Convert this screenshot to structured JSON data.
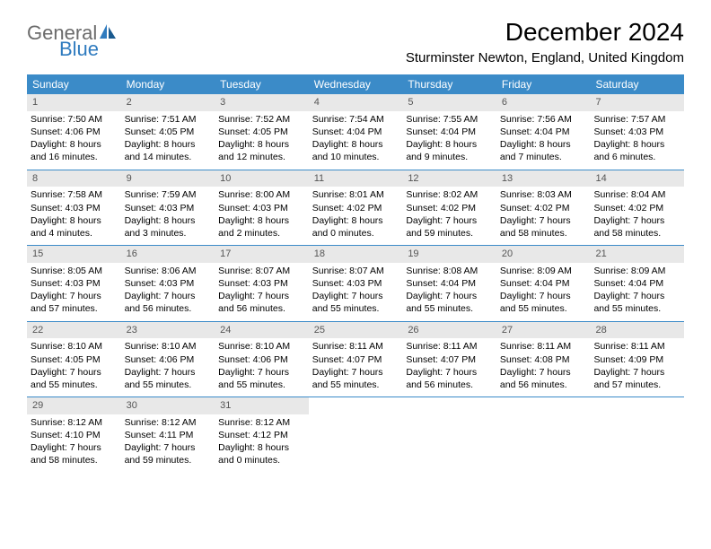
{
  "logo": {
    "general": "General",
    "blue": "Blue"
  },
  "title": "December 2024",
  "location": "Sturminster Newton, England, United Kingdom",
  "colors": {
    "header_bg": "#3b8bc8",
    "header_text": "#ffffff",
    "daynum_bg": "#e8e8e8",
    "daynum_text": "#555555",
    "row_border": "#3b8bc8",
    "logo_gray": "#6b6b6b",
    "logo_blue": "#2f7bbf"
  },
  "weekdays": [
    "Sunday",
    "Monday",
    "Tuesday",
    "Wednesday",
    "Thursday",
    "Friday",
    "Saturday"
  ],
  "weeks": [
    [
      {
        "n": "1",
        "sr": "Sunrise: 7:50 AM",
        "ss": "Sunset: 4:06 PM",
        "dl": "Daylight: 8 hours and 16 minutes."
      },
      {
        "n": "2",
        "sr": "Sunrise: 7:51 AM",
        "ss": "Sunset: 4:05 PM",
        "dl": "Daylight: 8 hours and 14 minutes."
      },
      {
        "n": "3",
        "sr": "Sunrise: 7:52 AM",
        "ss": "Sunset: 4:05 PM",
        "dl": "Daylight: 8 hours and 12 minutes."
      },
      {
        "n": "4",
        "sr": "Sunrise: 7:54 AM",
        "ss": "Sunset: 4:04 PM",
        "dl": "Daylight: 8 hours and 10 minutes."
      },
      {
        "n": "5",
        "sr": "Sunrise: 7:55 AM",
        "ss": "Sunset: 4:04 PM",
        "dl": "Daylight: 8 hours and 9 minutes."
      },
      {
        "n": "6",
        "sr": "Sunrise: 7:56 AM",
        "ss": "Sunset: 4:04 PM",
        "dl": "Daylight: 8 hours and 7 minutes."
      },
      {
        "n": "7",
        "sr": "Sunrise: 7:57 AM",
        "ss": "Sunset: 4:03 PM",
        "dl": "Daylight: 8 hours and 6 minutes."
      }
    ],
    [
      {
        "n": "8",
        "sr": "Sunrise: 7:58 AM",
        "ss": "Sunset: 4:03 PM",
        "dl": "Daylight: 8 hours and 4 minutes."
      },
      {
        "n": "9",
        "sr": "Sunrise: 7:59 AM",
        "ss": "Sunset: 4:03 PM",
        "dl": "Daylight: 8 hours and 3 minutes."
      },
      {
        "n": "10",
        "sr": "Sunrise: 8:00 AM",
        "ss": "Sunset: 4:03 PM",
        "dl": "Daylight: 8 hours and 2 minutes."
      },
      {
        "n": "11",
        "sr": "Sunrise: 8:01 AM",
        "ss": "Sunset: 4:02 PM",
        "dl": "Daylight: 8 hours and 0 minutes."
      },
      {
        "n": "12",
        "sr": "Sunrise: 8:02 AM",
        "ss": "Sunset: 4:02 PM",
        "dl": "Daylight: 7 hours and 59 minutes."
      },
      {
        "n": "13",
        "sr": "Sunrise: 8:03 AM",
        "ss": "Sunset: 4:02 PM",
        "dl": "Daylight: 7 hours and 58 minutes."
      },
      {
        "n": "14",
        "sr": "Sunrise: 8:04 AM",
        "ss": "Sunset: 4:02 PM",
        "dl": "Daylight: 7 hours and 58 minutes."
      }
    ],
    [
      {
        "n": "15",
        "sr": "Sunrise: 8:05 AM",
        "ss": "Sunset: 4:03 PM",
        "dl": "Daylight: 7 hours and 57 minutes."
      },
      {
        "n": "16",
        "sr": "Sunrise: 8:06 AM",
        "ss": "Sunset: 4:03 PM",
        "dl": "Daylight: 7 hours and 56 minutes."
      },
      {
        "n": "17",
        "sr": "Sunrise: 8:07 AM",
        "ss": "Sunset: 4:03 PM",
        "dl": "Daylight: 7 hours and 56 minutes."
      },
      {
        "n": "18",
        "sr": "Sunrise: 8:07 AM",
        "ss": "Sunset: 4:03 PM",
        "dl": "Daylight: 7 hours and 55 minutes."
      },
      {
        "n": "19",
        "sr": "Sunrise: 8:08 AM",
        "ss": "Sunset: 4:04 PM",
        "dl": "Daylight: 7 hours and 55 minutes."
      },
      {
        "n": "20",
        "sr": "Sunrise: 8:09 AM",
        "ss": "Sunset: 4:04 PM",
        "dl": "Daylight: 7 hours and 55 minutes."
      },
      {
        "n": "21",
        "sr": "Sunrise: 8:09 AM",
        "ss": "Sunset: 4:04 PM",
        "dl": "Daylight: 7 hours and 55 minutes."
      }
    ],
    [
      {
        "n": "22",
        "sr": "Sunrise: 8:10 AM",
        "ss": "Sunset: 4:05 PM",
        "dl": "Daylight: 7 hours and 55 minutes."
      },
      {
        "n": "23",
        "sr": "Sunrise: 8:10 AM",
        "ss": "Sunset: 4:06 PM",
        "dl": "Daylight: 7 hours and 55 minutes."
      },
      {
        "n": "24",
        "sr": "Sunrise: 8:10 AM",
        "ss": "Sunset: 4:06 PM",
        "dl": "Daylight: 7 hours and 55 minutes."
      },
      {
        "n": "25",
        "sr": "Sunrise: 8:11 AM",
        "ss": "Sunset: 4:07 PM",
        "dl": "Daylight: 7 hours and 55 minutes."
      },
      {
        "n": "26",
        "sr": "Sunrise: 8:11 AM",
        "ss": "Sunset: 4:07 PM",
        "dl": "Daylight: 7 hours and 56 minutes."
      },
      {
        "n": "27",
        "sr": "Sunrise: 8:11 AM",
        "ss": "Sunset: 4:08 PM",
        "dl": "Daylight: 7 hours and 56 minutes."
      },
      {
        "n": "28",
        "sr": "Sunrise: 8:11 AM",
        "ss": "Sunset: 4:09 PM",
        "dl": "Daylight: 7 hours and 57 minutes."
      }
    ],
    [
      {
        "n": "29",
        "sr": "Sunrise: 8:12 AM",
        "ss": "Sunset: 4:10 PM",
        "dl": "Daylight: 7 hours and 58 minutes."
      },
      {
        "n": "30",
        "sr": "Sunrise: 8:12 AM",
        "ss": "Sunset: 4:11 PM",
        "dl": "Daylight: 7 hours and 59 minutes."
      },
      {
        "n": "31",
        "sr": "Sunrise: 8:12 AM",
        "ss": "Sunset: 4:12 PM",
        "dl": "Daylight: 8 hours and 0 minutes."
      },
      null,
      null,
      null,
      null
    ]
  ]
}
